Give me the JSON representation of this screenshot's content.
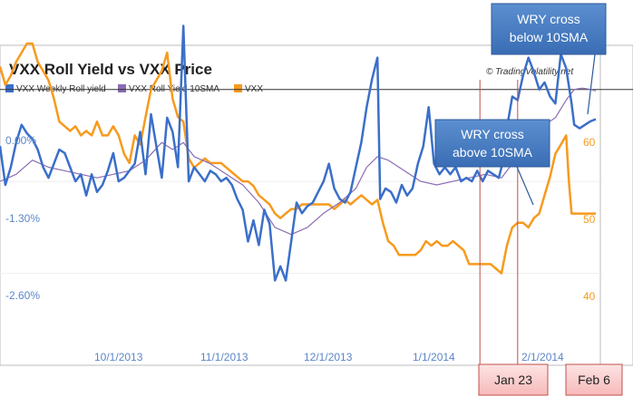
{
  "chart_data": {
    "type": "line",
    "title": "VXX Roll Yield vs VXX Price",
    "credit": "© TradingVolatility.net",
    "legend": [
      {
        "name": "VXX Weekly Roll yield",
        "color": "#3b6fc9"
      },
      {
        "name": "VXX Roll Yield 10SMA",
        "color": "#8a6cb5"
      },
      {
        "name": "VXX",
        "color": "#f79a1e"
      }
    ],
    "x_ticks": [
      "10/1/2013",
      "11/1/2013",
      "12/1/2013",
      "1/1/2014",
      "2/1/2014"
    ],
    "y_left_ticks": [
      "0.00%",
      "-1.30%",
      "-2.60%"
    ],
    "y_right_ticks": [
      "60",
      "50",
      "40"
    ],
    "callouts": {
      "cross_below": "WRY cross below 10SMA",
      "cross_below_lines": [
        "WRY cross",
        "below 10SMA"
      ],
      "cross_above_lines": [
        "WRY cross",
        "above 10SMA"
      ]
    },
    "markers": [
      {
        "label": "Jan 23",
        "date": "2014-01-23"
      },
      {
        "label": "Feb 6",
        "date": "2014-02-06"
      }
    ],
    "x_domain_days": [
      0,
      222
    ],
    "y_left_range_pct": [
      -3.9,
      0.65
    ],
    "y_right_range": [
      31,
      66
    ],
    "series": [
      {
        "name": "VXX Weekly Roll yield",
        "axis": "left",
        "color": "#3b6fc9",
        "points": [
          [
            0,
            -0.8
          ],
          [
            2,
            -1.35
          ],
          [
            4,
            -1.1
          ],
          [
            6,
            -0.75
          ],
          [
            8,
            -0.5
          ],
          [
            10,
            -0.62
          ],
          [
            12,
            -0.7
          ],
          [
            14,
            -0.85
          ],
          [
            16,
            -1.1
          ],
          [
            18,
            -1.25
          ],
          [
            20,
            -1.05
          ],
          [
            22,
            -0.85
          ],
          [
            24,
            -0.9
          ],
          [
            26,
            -1.1
          ],
          [
            28,
            -1.3
          ],
          [
            30,
            -1.2
          ],
          [
            32,
            -1.5
          ],
          [
            34,
            -1.2
          ],
          [
            36,
            -1.45
          ],
          [
            38,
            -1.35
          ],
          [
            40,
            -1.15
          ],
          [
            42,
            -0.9
          ],
          [
            44,
            -1.3
          ],
          [
            46,
            -1.25
          ],
          [
            48,
            -1.15
          ],
          [
            50,
            -1.05
          ],
          [
            52,
            -0.6
          ],
          [
            54,
            -1.2
          ],
          [
            56,
            -0.35
          ],
          [
            58,
            -0.8
          ],
          [
            60,
            -1.25
          ],
          [
            62,
            -0.4
          ],
          [
            64,
            -0.6
          ],
          [
            66,
            -1.1
          ],
          [
            68,
            0.9
          ],
          [
            70,
            -1.3
          ],
          [
            72,
            -1.1
          ],
          [
            74,
            -1.2
          ],
          [
            76,
            -1.3
          ],
          [
            78,
            -1.15
          ],
          [
            80,
            -1.2
          ],
          [
            82,
            -1.3
          ],
          [
            84,
            -1.25
          ],
          [
            86,
            -1.35
          ],
          [
            88,
            -1.55
          ],
          [
            90,
            -1.7
          ],
          [
            92,
            -2.15
          ],
          [
            94,
            -1.85
          ],
          [
            96,
            -2.2
          ],
          [
            98,
            -1.7
          ],
          [
            100,
            -1.9
          ],
          [
            102,
            -2.7
          ],
          [
            104,
            -2.5
          ],
          [
            106,
            -2.7
          ],
          [
            108,
            -2.15
          ],
          [
            110,
            -1.6
          ],
          [
            112,
            -1.75
          ],
          [
            114,
            -1.65
          ],
          [
            116,
            -1.6
          ],
          [
            118,
            -1.45
          ],
          [
            120,
            -1.3
          ],
          [
            122,
            -1.05
          ],
          [
            124,
            -1.4
          ],
          [
            126,
            -1.55
          ],
          [
            128,
            -1.6
          ],
          [
            130,
            -1.45
          ],
          [
            132,
            -1.1
          ],
          [
            134,
            -0.75
          ],
          [
            136,
            -0.25
          ],
          [
            138,
            0.15
          ],
          [
            140,
            0.45
          ],
          [
            141,
            -1.55
          ],
          [
            143,
            -1.4
          ],
          [
            145,
            -1.45
          ],
          [
            147,
            -1.6
          ],
          [
            149,
            -1.35
          ],
          [
            151,
            -1.5
          ],
          [
            153,
            -1.4
          ],
          [
            155,
            -1.05
          ],
          [
            157,
            -0.8
          ],
          [
            159,
            -0.25
          ],
          [
            161,
            -1.05
          ],
          [
            163,
            -1.2
          ],
          [
            165,
            -1.1
          ],
          [
            167,
            -1.2
          ],
          [
            169,
            -1.1
          ],
          [
            171,
            -1.3
          ],
          [
            173,
            -1.25
          ],
          [
            175,
            -1.3
          ],
          [
            177,
            -1.15
          ],
          [
            179,
            -1.3
          ],
          [
            181,
            -1.15
          ],
          [
            183,
            -1.2
          ],
          [
            185,
            -1.25
          ],
          [
            186,
            -1.1
          ],
          [
            188,
            -0.55
          ],
          [
            190,
            -0.1
          ],
          [
            192,
            -0.15
          ],
          [
            194,
            0.2
          ],
          [
            196,
            0.45
          ],
          [
            198,
            0.25
          ],
          [
            200,
            0.0
          ],
          [
            202,
            0.1
          ],
          [
            204,
            -0.1
          ],
          [
            206,
            -0.2
          ],
          [
            208,
            0.5
          ],
          [
            210,
            0.3
          ],
          [
            212,
            -0.2
          ],
          [
            213,
            -0.5
          ],
          [
            215,
            -0.55
          ],
          [
            217,
            -0.5
          ],
          [
            219,
            -0.45
          ],
          [
            221,
            -0.42
          ]
        ]
      },
      {
        "name": "VXX Roll Yield 10SMA",
        "axis": "left",
        "color": "#8a6cb5",
        "points": [
          [
            0,
            -1.3
          ],
          [
            6,
            -1.2
          ],
          [
            12,
            -1.0
          ],
          [
            18,
            -1.1
          ],
          [
            24,
            -1.15
          ],
          [
            30,
            -1.2
          ],
          [
            36,
            -1.25
          ],
          [
            42,
            -1.2
          ],
          [
            48,
            -1.15
          ],
          [
            54,
            -1.0
          ],
          [
            60,
            -0.75
          ],
          [
            64,
            -0.85
          ],
          [
            68,
            -0.75
          ],
          [
            72,
            -0.95
          ],
          [
            78,
            -1.05
          ],
          [
            84,
            -1.2
          ],
          [
            90,
            -1.35
          ],
          [
            96,
            -1.6
          ],
          [
            102,
            -1.95
          ],
          [
            108,
            -2.05
          ],
          [
            114,
            -1.95
          ],
          [
            120,
            -1.75
          ],
          [
            126,
            -1.6
          ],
          [
            132,
            -1.4
          ],
          [
            136,
            -1.1
          ],
          [
            140,
            -0.95
          ],
          [
            144,
            -1.0
          ],
          [
            150,
            -1.15
          ],
          [
            156,
            -1.3
          ],
          [
            162,
            -1.35
          ],
          [
            168,
            -1.3
          ],
          [
            174,
            -1.25
          ],
          [
            180,
            -1.2
          ],
          [
            186,
            -1.25
          ],
          [
            190,
            -1.05
          ],
          [
            196,
            -0.75
          ],
          [
            202,
            -0.5
          ],
          [
            206,
            -0.4
          ],
          [
            210,
            -0.15
          ],
          [
            213,
            0.0
          ],
          [
            216,
            0.02
          ],
          [
            219,
            0.0
          ],
          [
            221,
            -0.02
          ]
        ]
      },
      {
        "name": "VXX",
        "axis": "right",
        "color": "#f79a1e",
        "points": [
          [
            0,
            63.5
          ],
          [
            2,
            61.5
          ],
          [
            4,
            62.5
          ],
          [
            6,
            64
          ],
          [
            8,
            65
          ],
          [
            10,
            66
          ],
          [
            12,
            66
          ],
          [
            14,
            64
          ],
          [
            16,
            63
          ],
          [
            18,
            62
          ],
          [
            20,
            60
          ],
          [
            22,
            57.5
          ],
          [
            24,
            57
          ],
          [
            26,
            56.5
          ],
          [
            28,
            57
          ],
          [
            30,
            56
          ],
          [
            32,
            56.5
          ],
          [
            34,
            56
          ],
          [
            36,
            57.5
          ],
          [
            38,
            56
          ],
          [
            40,
            56
          ],
          [
            42,
            57
          ],
          [
            44,
            56
          ],
          [
            46,
            54
          ],
          [
            48,
            53
          ],
          [
            50,
            56
          ],
          [
            52,
            55
          ],
          [
            54,
            58
          ],
          [
            56,
            61
          ],
          [
            58,
            62
          ],
          [
            60,
            63
          ],
          [
            62,
            65
          ],
          [
            64,
            60
          ],
          [
            66,
            58
          ],
          [
            68,
            57.5
          ],
          [
            70,
            53.5
          ],
          [
            72,
            52.5
          ],
          [
            74,
            53
          ],
          [
            76,
            53.5
          ],
          [
            78,
            53
          ],
          [
            80,
            53
          ],
          [
            82,
            53
          ],
          [
            84,
            52.5
          ],
          [
            86,
            52
          ],
          [
            88,
            51.5
          ],
          [
            90,
            51
          ],
          [
            92,
            51
          ],
          [
            94,
            50.5
          ],
          [
            96,
            49.5
          ],
          [
            98,
            49
          ],
          [
            100,
            48.5
          ],
          [
            102,
            47.5
          ],
          [
            104,
            47
          ],
          [
            106,
            47.5
          ],
          [
            108,
            48
          ],
          [
            110,
            48
          ],
          [
            112,
            48.5
          ],
          [
            114,
            48.5
          ],
          [
            116,
            48.5
          ],
          [
            118,
            48.5
          ],
          [
            120,
            48.5
          ],
          [
            122,
            48.5
          ],
          [
            124,
            48
          ],
          [
            126,
            48.5
          ],
          [
            128,
            49
          ],
          [
            130,
            48.5
          ],
          [
            132,
            49
          ],
          [
            134,
            49.5
          ],
          [
            136,
            49
          ],
          [
            138,
            48.5
          ],
          [
            140,
            49
          ],
          [
            142,
            46.5
          ],
          [
            144,
            44.5
          ],
          [
            146,
            44
          ],
          [
            148,
            43
          ],
          [
            150,
            43
          ],
          [
            152,
            43
          ],
          [
            154,
            43
          ],
          [
            156,
            43.5
          ],
          [
            158,
            44.5
          ],
          [
            160,
            44
          ],
          [
            162,
            44.5
          ],
          [
            164,
            44
          ],
          [
            166,
            44
          ],
          [
            168,
            44.5
          ],
          [
            170,
            44
          ],
          [
            172,
            43.5
          ],
          [
            174,
            42
          ],
          [
            176,
            42
          ],
          [
            178,
            42
          ],
          [
            180,
            42
          ],
          [
            182,
            42
          ],
          [
            184,
            41.5
          ],
          [
            186,
            41
          ],
          [
            188,
            44
          ],
          [
            190,
            46
          ],
          [
            192,
            46.5
          ],
          [
            194,
            46.5
          ],
          [
            196,
            46
          ],
          [
            198,
            47
          ],
          [
            200,
            47.5
          ],
          [
            202,
            49.5
          ],
          [
            204,
            51.5
          ],
          [
            206,
            54
          ],
          [
            208,
            55
          ],
          [
            210,
            56
          ],
          [
            211,
            51
          ],
          [
            212,
            47.5
          ],
          [
            214,
            47.5
          ],
          [
            216,
            47.5
          ],
          [
            218,
            47.5
          ],
          [
            221,
            47.5
          ]
        ]
      }
    ]
  }
}
